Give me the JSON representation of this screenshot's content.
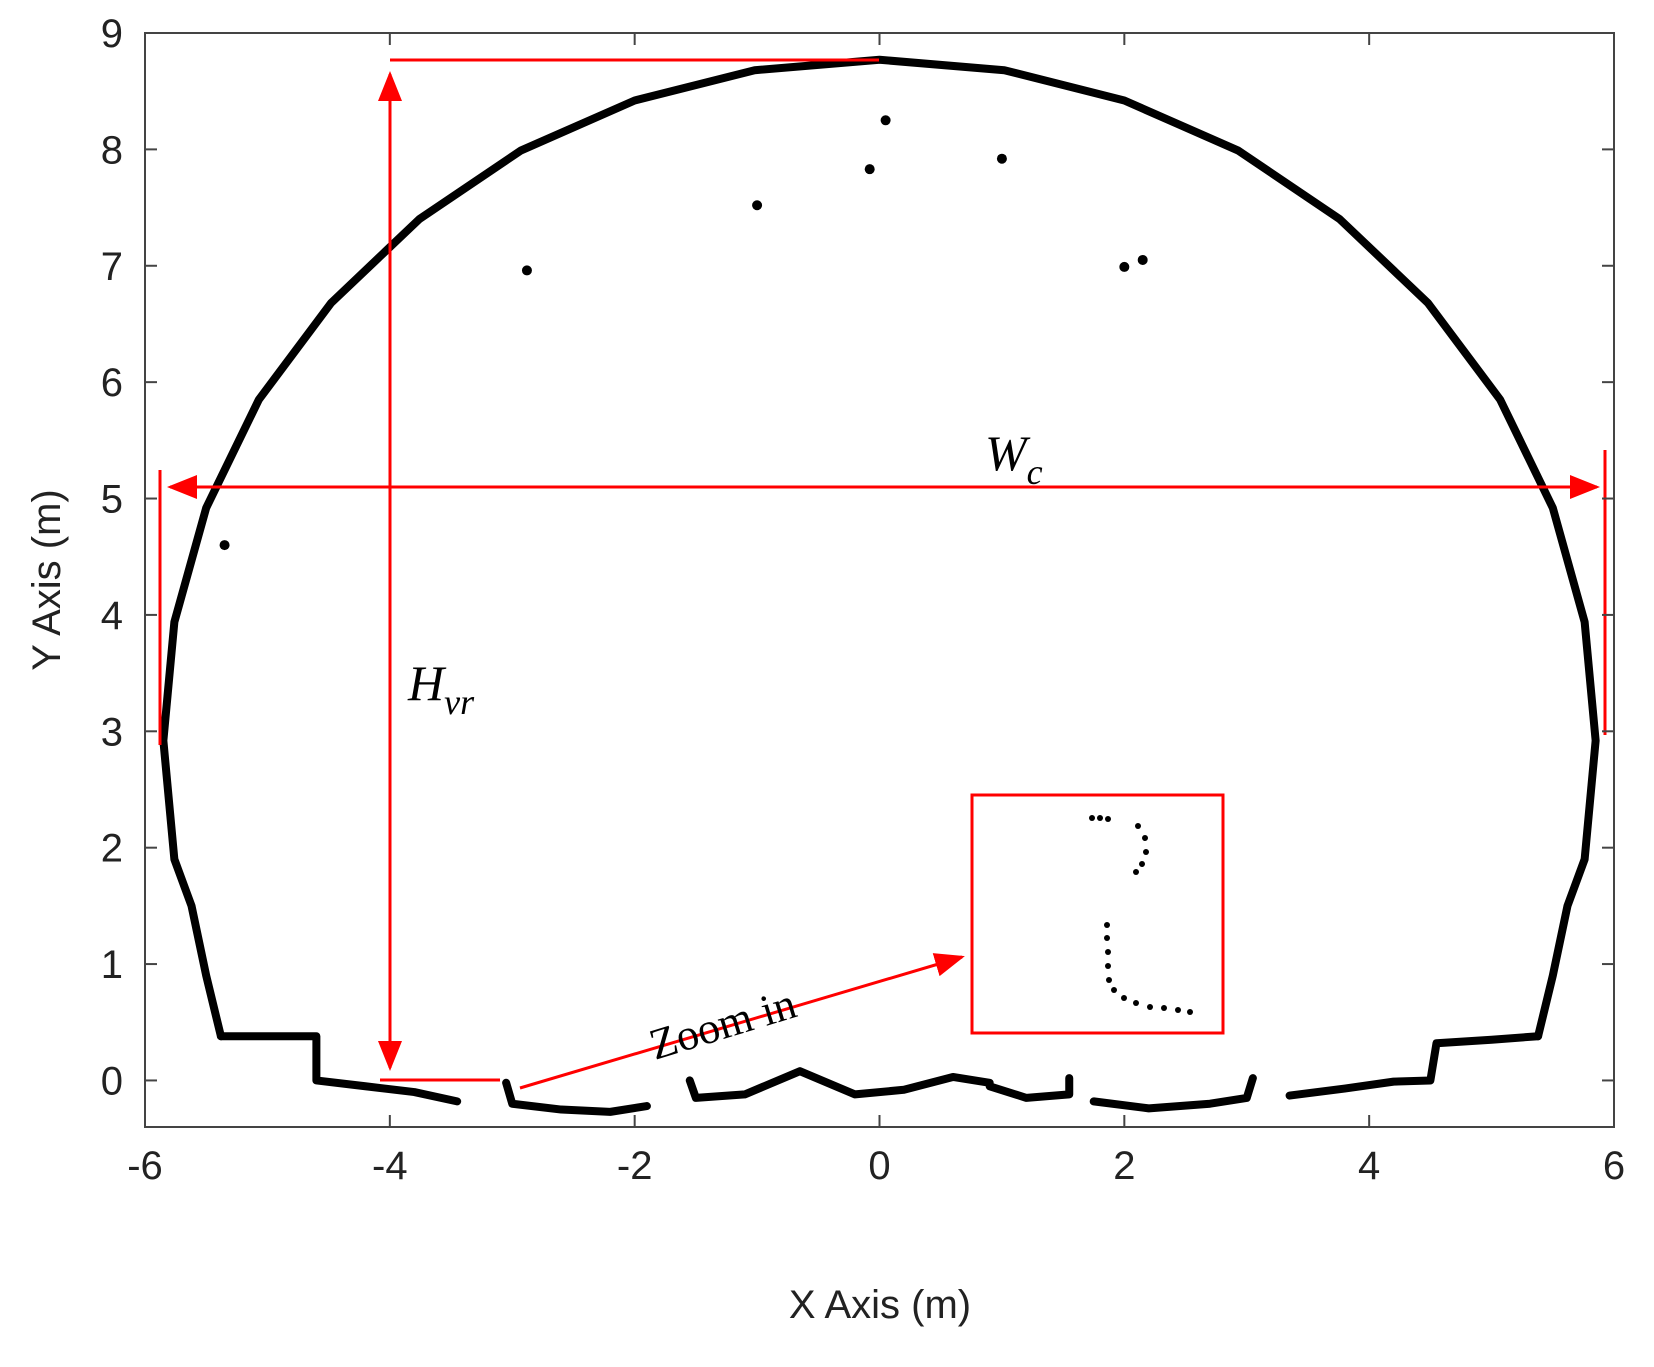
{
  "chart_data": {
    "type": "scatter",
    "xlabel": "X Axis (m)",
    "ylabel": "Y Axis (m)",
    "xlim": [
      -6,
      6
    ],
    "xticks": [
      -6,
      -4,
      -2,
      0,
      2,
      4,
      6
    ],
    "ylim": [
      -0.4,
      9
    ],
    "yticks": [
      0,
      1,
      2,
      3,
      4,
      5,
      6,
      7,
      8,
      9
    ],
    "series": [
      {
        "style": "line",
        "color": "#000000",
        "x": [
          -5.38,
          -5.5,
          -5.62,
          -5.76,
          -5.85,
          -5.76,
          -5.5,
          -5.07,
          -4.48,
          -3.76,
          -2.93,
          -2.0,
          -1.02,
          0,
          1.02,
          2.0,
          2.93,
          3.76,
          4.48,
          5.07,
          5.5,
          5.76,
          5.85,
          5.76,
          5.62,
          5.5,
          5.38
        ],
        "values": [
          0.38,
          0.9,
          1.5,
          1.9,
          2.92,
          3.94,
          4.92,
          5.85,
          6.68,
          7.4,
          7.99,
          8.42,
          8.68,
          8.77,
          8.68,
          8.42,
          7.99,
          7.4,
          6.68,
          5.85,
          4.92,
          3.94,
          2.92,
          1.9,
          1.5,
          0.9,
          0.38
        ]
      },
      {
        "style": "line",
        "color": "#000000",
        "x": [
          -5.38,
          -4.6,
          -4.6,
          -4.2,
          -3.8,
          -3.45,
          null,
          -3.05,
          -3.0,
          -2.6,
          -2.2,
          -1.9,
          null,
          -1.55,
          -1.5,
          -1.1,
          -0.65,
          -0.2,
          0.2,
          0.6,
          0.9,
          null,
          0.9,
          1.2,
          1.55,
          1.55,
          null,
          1.75,
          2.2,
          2.7,
          3.0,
          3.05,
          null,
          3.35,
          3.8,
          4.2,
          4.5,
          4.55,
          5.0,
          5.38
        ],
        "values": [
          0.38,
          0.38,
          0.0,
          -0.05,
          -0.1,
          -0.18,
          null,
          -0.02,
          -0.2,
          -0.25,
          -0.27,
          -0.22,
          null,
          0.0,
          -0.15,
          -0.12,
          0.08,
          -0.12,
          -0.08,
          0.03,
          -0.02,
          null,
          -0.05,
          -0.15,
          -0.12,
          0.02,
          null,
          -0.18,
          -0.24,
          -0.2,
          -0.15,
          0.02,
          null,
          -0.13,
          -0.07,
          -0.01,
          0.0,
          0.32,
          0.35,
          0.38
        ]
      },
      {
        "style": "marker",
        "color": "#000000",
        "x": [
          -2.88,
          -1.0,
          -0.08,
          0.05,
          1.0,
          2.0,
          2.15,
          -5.35
        ],
        "values": [
          6.96,
          7.52,
          7.83,
          8.25,
          7.92,
          6.99,
          7.05,
          4.6
        ]
      }
    ],
    "annotations": {
      "width": {
        "text": "W",
        "sub": "c"
      },
      "height": {
        "text": "H",
        "sub": "vr"
      },
      "zoom": "Zoom in"
    }
  }
}
